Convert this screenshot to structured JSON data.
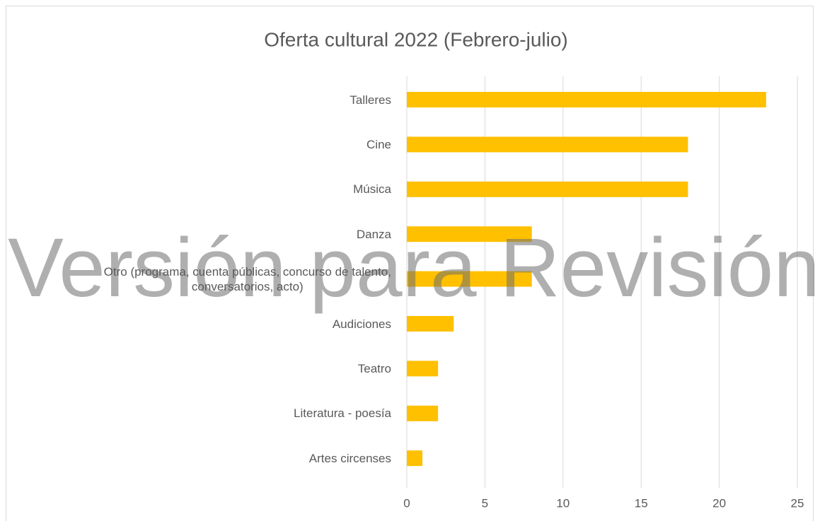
{
  "chart_data": {
    "type": "hbar",
    "title": "Oferta cultural 2022 (Febrero-julio)",
    "categories": [
      "Talleres",
      "Cine",
      "Música",
      "Danza",
      "Otro (programa, cuenta públicas, concurso de talento,\nconversatorios, acto)",
      "Audiciones",
      "Teatro",
      "Literatura - poesía",
      "Artes circenses"
    ],
    "values": [
      23,
      18,
      18,
      8,
      8,
      3,
      2,
      2,
      1
    ],
    "color": "#ffc000",
    "xlim": [
      0,
      25
    ],
    "xticks": [
      0,
      5,
      10,
      15,
      20,
      25
    ],
    "grid": true,
    "watermark": "Versión para Revisión"
  }
}
